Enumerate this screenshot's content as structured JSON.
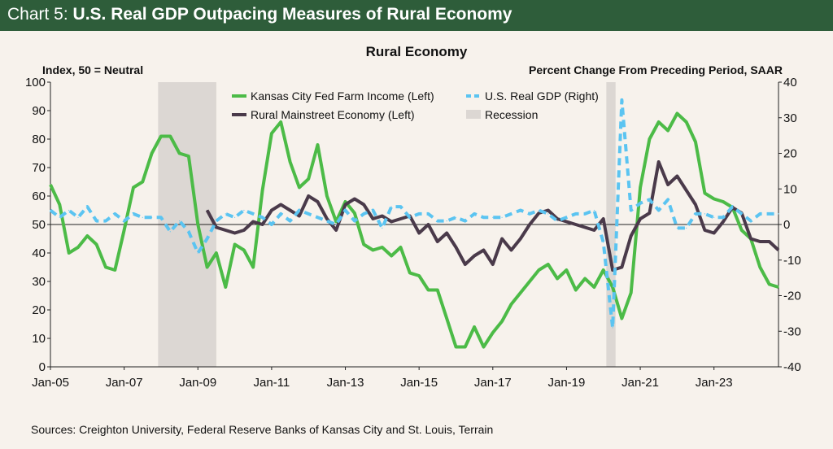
{
  "header": {
    "title_prefix": "Chart 5: ",
    "title_main": "U.S. Real GDP Outpacing Measures of Rural Economy",
    "background": "#2e5d3a"
  },
  "chart_data": {
    "type": "line",
    "title": "Rural Economy",
    "ylabel_left": "Index, 50 = Neutral",
    "ylabel_right": "Percent Change From Preceding Period, SAAR",
    "ylim_left": [
      0,
      100
    ],
    "ylim_right": [
      -40,
      40
    ],
    "yticks_left": [
      "0",
      "10",
      "20",
      "30",
      "40",
      "50",
      "60",
      "70",
      "80",
      "90",
      "100"
    ],
    "yticks_right": [
      "-40",
      "-30",
      "-20",
      "-10",
      "0",
      "10",
      "20",
      "30",
      "40"
    ],
    "xlim": [
      2005.0,
      2024.75
    ],
    "xticks": [
      {
        "x": 2005,
        "label": "Jan-05"
      },
      {
        "x": 2007,
        "label": "Jan-07"
      },
      {
        "x": 2009,
        "label": "Jan-09"
      },
      {
        "x": 2011,
        "label": "Jan-11"
      },
      {
        "x": 2013,
        "label": "Jan-13"
      },
      {
        "x": 2015,
        "label": "Jan-15"
      },
      {
        "x": 2017,
        "label": "Jan-17"
      },
      {
        "x": 2019,
        "label": "Jan-19"
      },
      {
        "x": 2021,
        "label": "Jan-21"
      },
      {
        "x": 2023,
        "label": "Jan-23"
      }
    ],
    "reference_line": {
      "axis": "left",
      "y": 50
    },
    "legend": {
      "placement": "top-center",
      "entries": [
        {
          "label": "Kansas City Fed Farm Income (Left)",
          "series": "farm"
        },
        {
          "label": "U.S. Real GDP (Right)",
          "series": "gdp"
        },
        {
          "label": "Rural Mainstreet Economy (Left)",
          "series": "rural"
        },
        {
          "label": "Recession",
          "series": "recession"
        }
      ]
    },
    "recessions": [
      [
        2007.92,
        2009.5
      ],
      [
        2020.08,
        2020.33
      ]
    ],
    "series": [
      {
        "key": "farm",
        "name": "Kansas City Fed Farm Income (Left)",
        "axis": "left",
        "color": "#4cbb47",
        "style": "solid",
        "points": [
          [
            2005.0,
            64
          ],
          [
            2005.25,
            57
          ],
          [
            2005.5,
            40
          ],
          [
            2005.75,
            42
          ],
          [
            2006.0,
            46
          ],
          [
            2006.25,
            43
          ],
          [
            2006.5,
            35
          ],
          [
            2006.75,
            34
          ],
          [
            2007.0,
            48
          ],
          [
            2007.25,
            63
          ],
          [
            2007.5,
            65
          ],
          [
            2007.75,
            75
          ],
          [
            2008.0,
            81
          ],
          [
            2008.25,
            81
          ],
          [
            2008.5,
            75
          ],
          [
            2008.75,
            74
          ],
          [
            2009.0,
            50
          ],
          [
            2009.25,
            35
          ],
          [
            2009.5,
            40
          ],
          [
            2009.75,
            28
          ],
          [
            2010.0,
            43
          ],
          [
            2010.25,
            41
          ],
          [
            2010.5,
            35
          ],
          [
            2010.75,
            62
          ],
          [
            2011.0,
            82
          ],
          [
            2011.25,
            86
          ],
          [
            2011.5,
            72
          ],
          [
            2011.75,
            63
          ],
          [
            2012.0,
            66
          ],
          [
            2012.25,
            78
          ],
          [
            2012.5,
            60
          ],
          [
            2012.75,
            51
          ],
          [
            2013.0,
            58
          ],
          [
            2013.25,
            54
          ],
          [
            2013.5,
            43
          ],
          [
            2013.75,
            41
          ],
          [
            2014.0,
            42
          ],
          [
            2014.25,
            39
          ],
          [
            2014.5,
            42
          ],
          [
            2014.75,
            33
          ],
          [
            2015.0,
            32
          ],
          [
            2015.25,
            27
          ],
          [
            2015.5,
            27
          ],
          [
            2015.75,
            17
          ],
          [
            2016.0,
            7
          ],
          [
            2016.25,
            7
          ],
          [
            2016.5,
            14
          ],
          [
            2016.75,
            7
          ],
          [
            2017.0,
            12
          ],
          [
            2017.25,
            16
          ],
          [
            2017.5,
            22
          ],
          [
            2017.75,
            26
          ],
          [
            2018.0,
            30
          ],
          [
            2018.25,
            34
          ],
          [
            2018.5,
            36
          ],
          [
            2018.75,
            31
          ],
          [
            2019.0,
            34
          ],
          [
            2019.25,
            27
          ],
          [
            2019.5,
            31
          ],
          [
            2019.75,
            28
          ],
          [
            2020.0,
            34
          ],
          [
            2020.25,
            28
          ],
          [
            2020.5,
            17
          ],
          [
            2020.75,
            26
          ],
          [
            2021.0,
            63
          ],
          [
            2021.25,
            80
          ],
          [
            2021.5,
            86
          ],
          [
            2021.75,
            83
          ],
          [
            2022.0,
            89
          ],
          [
            2022.25,
            86
          ],
          [
            2022.5,
            79
          ],
          [
            2022.75,
            61
          ],
          [
            2023.0,
            59
          ],
          [
            2023.25,
            58
          ],
          [
            2023.5,
            56
          ],
          [
            2023.75,
            48
          ],
          [
            2024.0,
            45
          ],
          [
            2024.25,
            35
          ],
          [
            2024.5,
            29
          ],
          [
            2024.75,
            28
          ]
        ]
      },
      {
        "key": "rural",
        "name": "Rural Mainstreet Economy (Left)",
        "axis": "left",
        "color": "#4a3a4a",
        "style": "solid",
        "points": [
          [
            2009.25,
            55
          ],
          [
            2009.5,
            49
          ],
          [
            2010.0,
            47
          ],
          [
            2010.25,
            48
          ],
          [
            2010.5,
            51
          ],
          [
            2010.75,
            50
          ],
          [
            2011.0,
            55
          ],
          [
            2011.25,
            57
          ],
          [
            2011.5,
            55
          ],
          [
            2011.75,
            53
          ],
          [
            2012.0,
            60
          ],
          [
            2012.25,
            58
          ],
          [
            2012.5,
            52
          ],
          [
            2012.75,
            48
          ],
          [
            2013.0,
            57
          ],
          [
            2013.25,
            59
          ],
          [
            2013.5,
            57
          ],
          [
            2013.75,
            52
          ],
          [
            2014.0,
            53
          ],
          [
            2014.25,
            51
          ],
          [
            2014.5,
            52
          ],
          [
            2014.75,
            53
          ],
          [
            2015.0,
            47
          ],
          [
            2015.25,
            50
          ],
          [
            2015.5,
            44
          ],
          [
            2015.75,
            47
          ],
          [
            2016.0,
            42
          ],
          [
            2016.25,
            36
          ],
          [
            2016.5,
            39
          ],
          [
            2016.75,
            41
          ],
          [
            2017.0,
            36
          ],
          [
            2017.25,
            45
          ],
          [
            2017.5,
            41
          ],
          [
            2017.75,
            45
          ],
          [
            2018.0,
            50
          ],
          [
            2018.25,
            54
          ],
          [
            2018.5,
            55
          ],
          [
            2018.75,
            52
          ],
          [
            2019.0,
            51
          ],
          [
            2019.25,
            50
          ],
          [
            2019.5,
            49
          ],
          [
            2019.75,
            48
          ],
          [
            2020.0,
            52
          ],
          [
            2020.25,
            34
          ],
          [
            2020.5,
            35
          ],
          [
            2020.75,
            46
          ],
          [
            2021.0,
            52
          ],
          [
            2021.25,
            54
          ],
          [
            2021.5,
            72
          ],
          [
            2021.75,
            64
          ],
          [
            2022.0,
            67
          ],
          [
            2022.25,
            62
          ],
          [
            2022.5,
            57
          ],
          [
            2022.75,
            48
          ],
          [
            2023.0,
            47
          ],
          [
            2023.25,
            51
          ],
          [
            2023.5,
            56
          ],
          [
            2023.75,
            54
          ],
          [
            2024.0,
            45
          ],
          [
            2024.25,
            44
          ],
          [
            2024.5,
            44
          ],
          [
            2024.75,
            41
          ]
        ]
      },
      {
        "key": "gdp",
        "name": "U.S. Real GDP (Right)",
        "axis": "right",
        "color": "#5bc4f1",
        "style": "dashed",
        "points": [
          [
            2005.0,
            4
          ],
          [
            2005.25,
            2
          ],
          [
            2005.5,
            4
          ],
          [
            2005.75,
            2
          ],
          [
            2006.0,
            5
          ],
          [
            2006.25,
            1
          ],
          [
            2006.5,
            1
          ],
          [
            2006.75,
            3
          ],
          [
            2007.0,
            1
          ],
          [
            2007.25,
            3
          ],
          [
            2007.5,
            2
          ],
          [
            2007.75,
            2
          ],
          [
            2008.0,
            2
          ],
          [
            2008.25,
            -2
          ],
          [
            2008.5,
            1
          ],
          [
            2008.75,
            -2
          ],
          [
            2009.0,
            -8
          ],
          [
            2009.25,
            -4
          ],
          [
            2009.5,
            1
          ],
          [
            2009.75,
            3
          ],
          [
            2010.0,
            2
          ],
          [
            2010.25,
            4
          ],
          [
            2010.5,
            3
          ],
          [
            2010.75,
            2
          ],
          [
            2011.0,
            0
          ],
          [
            2011.25,
            3
          ],
          [
            2011.5,
            1
          ],
          [
            2011.75,
            4
          ],
          [
            2012.0,
            3
          ],
          [
            2012.25,
            2
          ],
          [
            2012.5,
            1
          ],
          [
            2012.75,
            0
          ],
          [
            2013.0,
            4
          ],
          [
            2013.25,
            1
          ],
          [
            2013.5,
            3
          ],
          [
            2013.75,
            4
          ],
          [
            2014.0,
            -1
          ],
          [
            2014.25,
            5
          ],
          [
            2014.5,
            5
          ],
          [
            2014.75,
            2
          ],
          [
            2015.0,
            3
          ],
          [
            2015.25,
            3
          ],
          [
            2015.5,
            1
          ],
          [
            2015.75,
            1
          ],
          [
            2016.0,
            2
          ],
          [
            2016.25,
            1
          ],
          [
            2016.5,
            3
          ],
          [
            2016.75,
            2
          ],
          [
            2017.0,
            2
          ],
          [
            2017.25,
            2
          ],
          [
            2017.5,
            3
          ],
          [
            2017.75,
            4
          ],
          [
            2018.0,
            3
          ],
          [
            2018.25,
            4
          ],
          [
            2018.5,
            3
          ],
          [
            2018.75,
            1
          ],
          [
            2019.0,
            2
          ],
          [
            2019.25,
            3
          ],
          [
            2019.5,
            3
          ],
          [
            2019.75,
            4
          ],
          [
            2020.0,
            -5
          ],
          [
            2020.25,
            -29
          ],
          [
            2020.5,
            35
          ],
          [
            2020.75,
            4
          ],
          [
            2021.0,
            6
          ],
          [
            2021.25,
            7
          ],
          [
            2021.5,
            4
          ],
          [
            2021.75,
            7
          ],
          [
            2022.0,
            -1
          ],
          [
            2022.25,
            -1
          ],
          [
            2022.5,
            3
          ],
          [
            2022.75,
            3
          ],
          [
            2023.0,
            2
          ],
          [
            2023.25,
            2
          ],
          [
            2023.5,
            5
          ],
          [
            2023.75,
            3
          ],
          [
            2024.0,
            1
          ],
          [
            2024.25,
            3
          ],
          [
            2024.5,
            3
          ],
          [
            2024.75,
            3
          ]
        ]
      }
    ]
  },
  "source_text": "Sources: Creighton University, Federal Reserve Banks of Kansas City and St. Louis, Terrain"
}
